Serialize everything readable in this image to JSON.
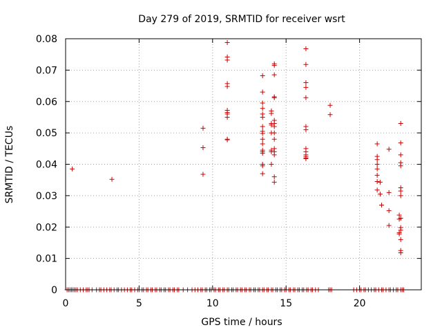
{
  "chart_data": {
    "type": "scatter",
    "title": "Day 279 of 2019, SRMTID for receiver wsrt",
    "xlabel": "GPS time / hours",
    "ylabel": "SRMTID / TECUs",
    "xlim": [
      0,
      24.2
    ],
    "ylim": [
      0,
      0.08
    ],
    "xticks": [
      0,
      5,
      10,
      15,
      20
    ],
    "xtick_labels": [
      "0",
      "5",
      "10",
      "15",
      "20"
    ],
    "yticks": [
      0,
      0.01,
      0.02,
      0.03,
      0.04,
      0.05,
      0.06,
      0.07,
      0.08
    ],
    "ytick_labels": [
      "0",
      "0.01",
      "0.02",
      "0.03",
      "0.04",
      "0.05",
      "0.06",
      "0.07",
      "0.08"
    ],
    "grid": true,
    "marker": "plus",
    "color": "#cc0000",
    "points": [
      [
        0.45,
        0.0385
      ],
      [
        3.15,
        0.0352
      ],
      [
        9.35,
        0.0515
      ],
      [
        9.35,
        0.0453
      ],
      [
        9.35,
        0.0368
      ],
      [
        11.0,
        0.0788
      ],
      [
        11.0,
        0.0742
      ],
      [
        11.0,
        0.0732
      ],
      [
        11.0,
        0.0657
      ],
      [
        11.0,
        0.0648
      ],
      [
        11.0,
        0.0572
      ],
      [
        11.0,
        0.0565
      ],
      [
        11.0,
        0.056
      ],
      [
        11.0,
        0.055
      ],
      [
        11.0,
        0.048
      ],
      [
        11.0,
        0.0478
      ],
      [
        13.4,
        0.0682
      ],
      [
        13.4,
        0.063
      ],
      [
        13.4,
        0.0595
      ],
      [
        13.4,
        0.0578
      ],
      [
        13.4,
        0.056
      ],
      [
        13.4,
        0.055
      ],
      [
        13.4,
        0.052
      ],
      [
        13.4,
        0.0505
      ],
      [
        13.4,
        0.0498
      ],
      [
        13.4,
        0.048
      ],
      [
        13.4,
        0.0465
      ],
      [
        13.4,
        0.0445
      ],
      [
        13.4,
        0.044
      ],
      [
        13.4,
        0.0435
      ],
      [
        13.4,
        0.04
      ],
      [
        13.4,
        0.0395
      ],
      [
        13.4,
        0.037
      ],
      [
        14.0,
        0.057
      ],
      [
        14.0,
        0.0562
      ],
      [
        14.0,
        0.053
      ],
      [
        14.0,
        0.0525
      ],
      [
        14.0,
        0.05
      ],
      [
        14.0,
        0.0445
      ],
      [
        14.0,
        0.044
      ],
      [
        14.0,
        0.04
      ],
      [
        14.2,
        0.072
      ],
      [
        14.2,
        0.0715
      ],
      [
        14.2,
        0.0685
      ],
      [
        14.2,
        0.0615
      ],
      [
        14.2,
        0.0612
      ],
      [
        14.2,
        0.054
      ],
      [
        14.2,
        0.053
      ],
      [
        14.2,
        0.052
      ],
      [
        14.2,
        0.05
      ],
      [
        14.2,
        0.048
      ],
      [
        14.2,
        0.045
      ],
      [
        14.2,
        0.044
      ],
      [
        14.2,
        0.043
      ],
      [
        14.2,
        0.036
      ],
      [
        14.2,
        0.0343
      ],
      [
        16.35,
        0.0768
      ],
      [
        16.35,
        0.0718
      ],
      [
        16.35,
        0.066
      ],
      [
        16.35,
        0.0645
      ],
      [
        16.35,
        0.0612
      ],
      [
        16.35,
        0.052
      ],
      [
        16.35,
        0.051
      ],
      [
        16.35,
        0.045
      ],
      [
        16.35,
        0.044
      ],
      [
        16.35,
        0.043
      ],
      [
        16.35,
        0.0425
      ],
      [
        16.35,
        0.042
      ],
      [
        16.35,
        0.0418
      ],
      [
        18.0,
        0.0588
      ],
      [
        18.0,
        0.0558
      ],
      [
        21.2,
        0.0465
      ],
      [
        21.2,
        0.0425
      ],
      [
        21.2,
        0.0415
      ],
      [
        21.2,
        0.04
      ],
      [
        21.2,
        0.0385
      ],
      [
        21.2,
        0.0365
      ],
      [
        21.2,
        0.0345
      ],
      [
        21.2,
        0.0318
      ],
      [
        21.4,
        0.0343
      ],
      [
        21.4,
        0.0305
      ],
      [
        21.5,
        0.027
      ],
      [
        22.0,
        0.0448
      ],
      [
        22.0,
        0.031
      ],
      [
        22.0,
        0.0252
      ],
      [
        22.0,
        0.0205
      ],
      [
        22.7,
        0.0238
      ],
      [
        22.7,
        0.0225
      ],
      [
        22.7,
        0.0182
      ],
      [
        22.7,
        0.0178
      ],
      [
        22.8,
        0.053
      ],
      [
        22.8,
        0.0468
      ],
      [
        22.8,
        0.043
      ],
      [
        22.8,
        0.0405
      ],
      [
        22.8,
        0.0395
      ],
      [
        22.8,
        0.0325
      ],
      [
        22.8,
        0.0315
      ],
      [
        22.8,
        0.03
      ],
      [
        22.8,
        0.0228
      ],
      [
        22.8,
        0.0198
      ],
      [
        22.8,
        0.019
      ],
      [
        22.8,
        0.016
      ],
      [
        22.8,
        0.0125
      ],
      [
        22.8,
        0.0118
      ],
      [
        0.1,
        0
      ],
      [
        0.2,
        0
      ],
      [
        0.3,
        0
      ],
      [
        0.4,
        0
      ],
      [
        0.5,
        0
      ],
      [
        0.6,
        0
      ],
      [
        0.7,
        0
      ],
      [
        0.8,
        0
      ],
      [
        1.0,
        0
      ],
      [
        1.2,
        0
      ],
      [
        1.4,
        0
      ],
      [
        1.5,
        0
      ],
      [
        1.6,
        0
      ],
      [
        1.8,
        0
      ],
      [
        2.1,
        0
      ],
      [
        2.3,
        0
      ],
      [
        2.4,
        0
      ],
      [
        2.6,
        0
      ],
      [
        2.8,
        0
      ],
      [
        3.0,
        0
      ],
      [
        3.1,
        0
      ],
      [
        3.3,
        0
      ],
      [
        3.5,
        0
      ],
      [
        3.6,
        0
      ],
      [
        3.8,
        0
      ],
      [
        4.0,
        0
      ],
      [
        4.2,
        0
      ],
      [
        4.4,
        0
      ],
      [
        4.5,
        0
      ],
      [
        4.7,
        0
      ],
      [
        4.9,
        0
      ],
      [
        5.0,
        0
      ],
      [
        5.2,
        0
      ],
      [
        5.3,
        0
      ],
      [
        5.5,
        0
      ],
      [
        5.6,
        0
      ],
      [
        5.8,
        0
      ],
      [
        5.9,
        0
      ],
      [
        6.1,
        0
      ],
      [
        6.2,
        0
      ],
      [
        6.4,
        0
      ],
      [
        6.5,
        0
      ],
      [
        6.7,
        0
      ],
      [
        6.8,
        0
      ],
      [
        7.0,
        0
      ],
      [
        7.1,
        0
      ],
      [
        7.3,
        0
      ],
      [
        7.4,
        0
      ],
      [
        7.6,
        0
      ],
      [
        7.7,
        0
      ],
      [
        8.0,
        0
      ],
      [
        8.3,
        0
      ],
      [
        8.6,
        0
      ],
      [
        8.8,
        0
      ],
      [
        9.0,
        0
      ],
      [
        9.2,
        0
      ],
      [
        9.3,
        0
      ],
      [
        9.5,
        0
      ],
      [
        9.6,
        0
      ],
      [
        9.8,
        0
      ],
      [
        9.9,
        0
      ],
      [
        10.1,
        0
      ],
      [
        10.2,
        0
      ],
      [
        10.4,
        0
      ],
      [
        10.5,
        0
      ],
      [
        10.7,
        0
      ],
      [
        10.8,
        0
      ],
      [
        11.0,
        0
      ],
      [
        11.1,
        0
      ],
      [
        11.3,
        0
      ],
      [
        11.4,
        0
      ],
      [
        11.6,
        0
      ],
      [
        11.7,
        0
      ],
      [
        11.9,
        0
      ],
      [
        12.0,
        0
      ],
      [
        12.2,
        0
      ],
      [
        12.3,
        0
      ],
      [
        12.5,
        0
      ],
      [
        12.6,
        0
      ],
      [
        12.8,
        0
      ],
      [
        12.9,
        0
      ],
      [
        13.1,
        0
      ],
      [
        13.2,
        0
      ],
      [
        13.4,
        0
      ],
      [
        13.5,
        0
      ],
      [
        13.7,
        0
      ],
      [
        13.8,
        0
      ],
      [
        14.0,
        0
      ],
      [
        14.1,
        0
      ],
      [
        14.3,
        0
      ],
      [
        14.4,
        0
      ],
      [
        14.6,
        0
      ],
      [
        14.7,
        0
      ],
      [
        14.9,
        0
      ],
      [
        15.0,
        0
      ],
      [
        15.2,
        0
      ],
      [
        15.3,
        0
      ],
      [
        15.5,
        0
      ],
      [
        15.6,
        0
      ],
      [
        15.8,
        0
      ],
      [
        15.9,
        0
      ],
      [
        16.1,
        0
      ],
      [
        16.2,
        0
      ],
      [
        16.4,
        0
      ],
      [
        16.5,
        0
      ],
      [
        16.7,
        0
      ],
      [
        16.8,
        0
      ],
      [
        17.0,
        0
      ],
      [
        17.2,
        0
      ],
      [
        17.9,
        0
      ],
      [
        18.0,
        0
      ],
      [
        18.1,
        0
      ],
      [
        19.6,
        0
      ],
      [
        19.8,
        0
      ],
      [
        20.0,
        0
      ],
      [
        20.1,
        0
      ],
      [
        20.3,
        0
      ],
      [
        20.4,
        0
      ],
      [
        20.6,
        0
      ],
      [
        20.8,
        0
      ],
      [
        21.0,
        0
      ],
      [
        21.1,
        0
      ],
      [
        21.3,
        0
      ],
      [
        21.5,
        0
      ],
      [
        21.6,
        0
      ],
      [
        21.8,
        0
      ],
      [
        22.0,
        0
      ],
      [
        22.1,
        0
      ],
      [
        22.3,
        0
      ],
      [
        22.5,
        0
      ],
      [
        22.6,
        0
      ],
      [
        22.8,
        0
      ],
      [
        22.9,
        0
      ],
      [
        23.0,
        0
      ]
    ]
  }
}
